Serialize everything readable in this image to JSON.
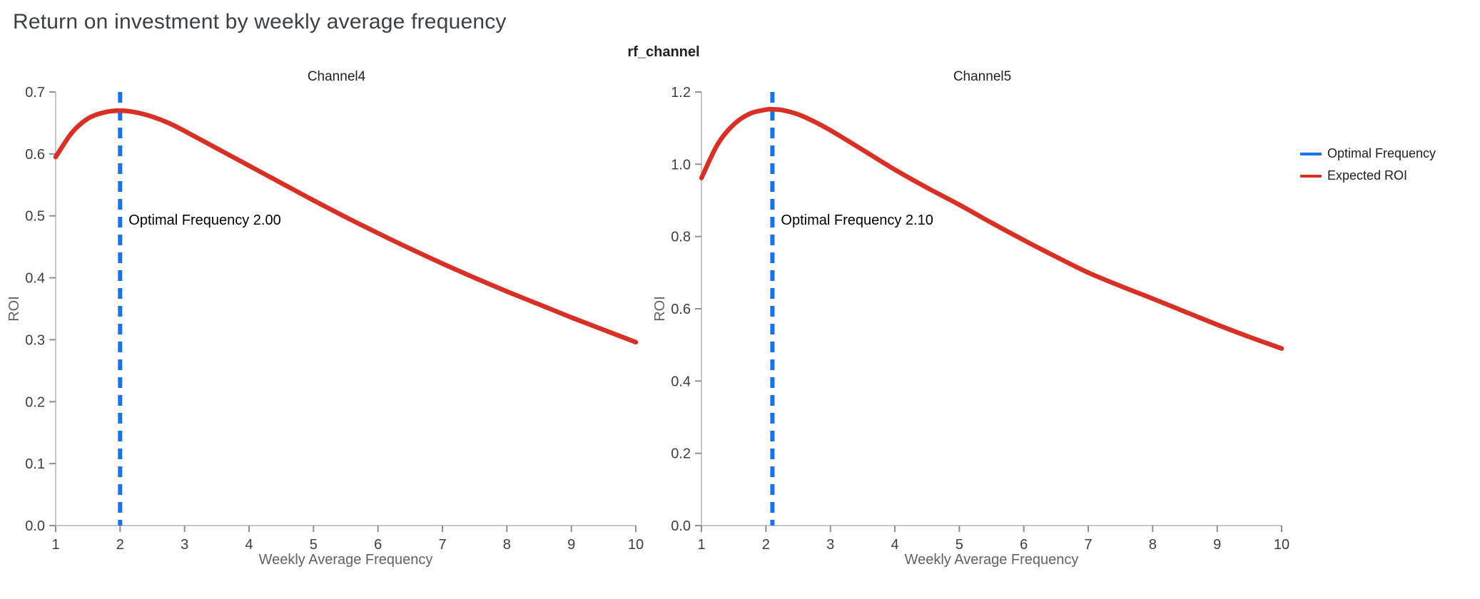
{
  "header": {
    "title": "Return on investment by weekly average frequency",
    "facet_label": "rf_channel"
  },
  "legend": {
    "entries": [
      {
        "label": "Optimal Frequency",
        "color": "#1a73e8"
      },
      {
        "label": "Expected ROI",
        "color": "#d93025"
      }
    ]
  },
  "chart_data": [
    {
      "type": "line",
      "title": "Channel4",
      "xlabel": "Weekly Average Frequency",
      "ylabel": "ROI",
      "xlim": [
        1,
        10
      ],
      "ylim": [
        0.0,
        0.7
      ],
      "xticks": [
        "1",
        "2",
        "3",
        "4",
        "5",
        "6",
        "7",
        "8",
        "9",
        "10"
      ],
      "yticks": [
        "0.0",
        "0.1",
        "0.2",
        "0.3",
        "0.4",
        "0.5",
        "0.6",
        "0.7"
      ],
      "grid": false,
      "legend_position": "right",
      "annotation": {
        "text": "Optimal Frequency  2.00"
      },
      "vline": {
        "label": "Optimal Frequency",
        "x": 2.0,
        "color": "#1a73e8",
        "style": "dashed"
      },
      "series": [
        {
          "name": "Expected ROI",
          "color": "#d93025",
          "x": [
            1,
            1.25,
            1.5,
            1.75,
            2,
            2.25,
            2.5,
            2.75,
            3,
            3.5,
            4,
            4.5,
            5,
            5.5,
            6,
            6.5,
            7,
            7.5,
            8,
            8.5,
            9,
            9.5,
            10
          ],
          "y": [
            0.595,
            0.634,
            0.657,
            0.667,
            0.67,
            0.667,
            0.66,
            0.65,
            0.637,
            0.609,
            0.581,
            0.553,
            0.525,
            0.498,
            0.472,
            0.447,
            0.423,
            0.4,
            0.378,
            0.357,
            0.336,
            0.316,
            0.296
          ]
        }
      ]
    },
    {
      "type": "line",
      "title": "Channel5",
      "xlabel": "Weekly Average Frequency",
      "ylabel": "ROI",
      "xlim": [
        1,
        10
      ],
      "ylim": [
        0.0,
        1.2
      ],
      "xticks": [
        "1",
        "2",
        "3",
        "4",
        "5",
        "6",
        "7",
        "8",
        "9",
        "10"
      ],
      "yticks": [
        "0.0",
        "0.2",
        "0.4",
        "0.6",
        "0.8",
        "1.0",
        "1.2"
      ],
      "grid": false,
      "legend_position": "right",
      "annotation": {
        "text": "Optimal Frequency  2.10"
      },
      "vline": {
        "label": "Optimal Frequency",
        "x": 2.1,
        "color": "#1a73e8",
        "style": "dashed"
      },
      "series": [
        {
          "name": "Expected ROI",
          "color": "#d93025",
          "x": [
            1,
            1.25,
            1.5,
            1.75,
            2,
            2.1,
            2.25,
            2.5,
            2.75,
            3,
            3.5,
            4,
            4.5,
            5,
            5.5,
            6,
            6.5,
            7,
            7.5,
            8,
            8.5,
            9,
            9.5,
            10
          ],
          "y": [
            0.962,
            1.055,
            1.11,
            1.14,
            1.151,
            1.152,
            1.15,
            1.138,
            1.118,
            1.094,
            1.04,
            0.985,
            0.935,
            0.888,
            0.838,
            0.79,
            0.744,
            0.7,
            0.663,
            0.628,
            0.592,
            0.556,
            0.522,
            0.49
          ]
        }
      ]
    }
  ]
}
